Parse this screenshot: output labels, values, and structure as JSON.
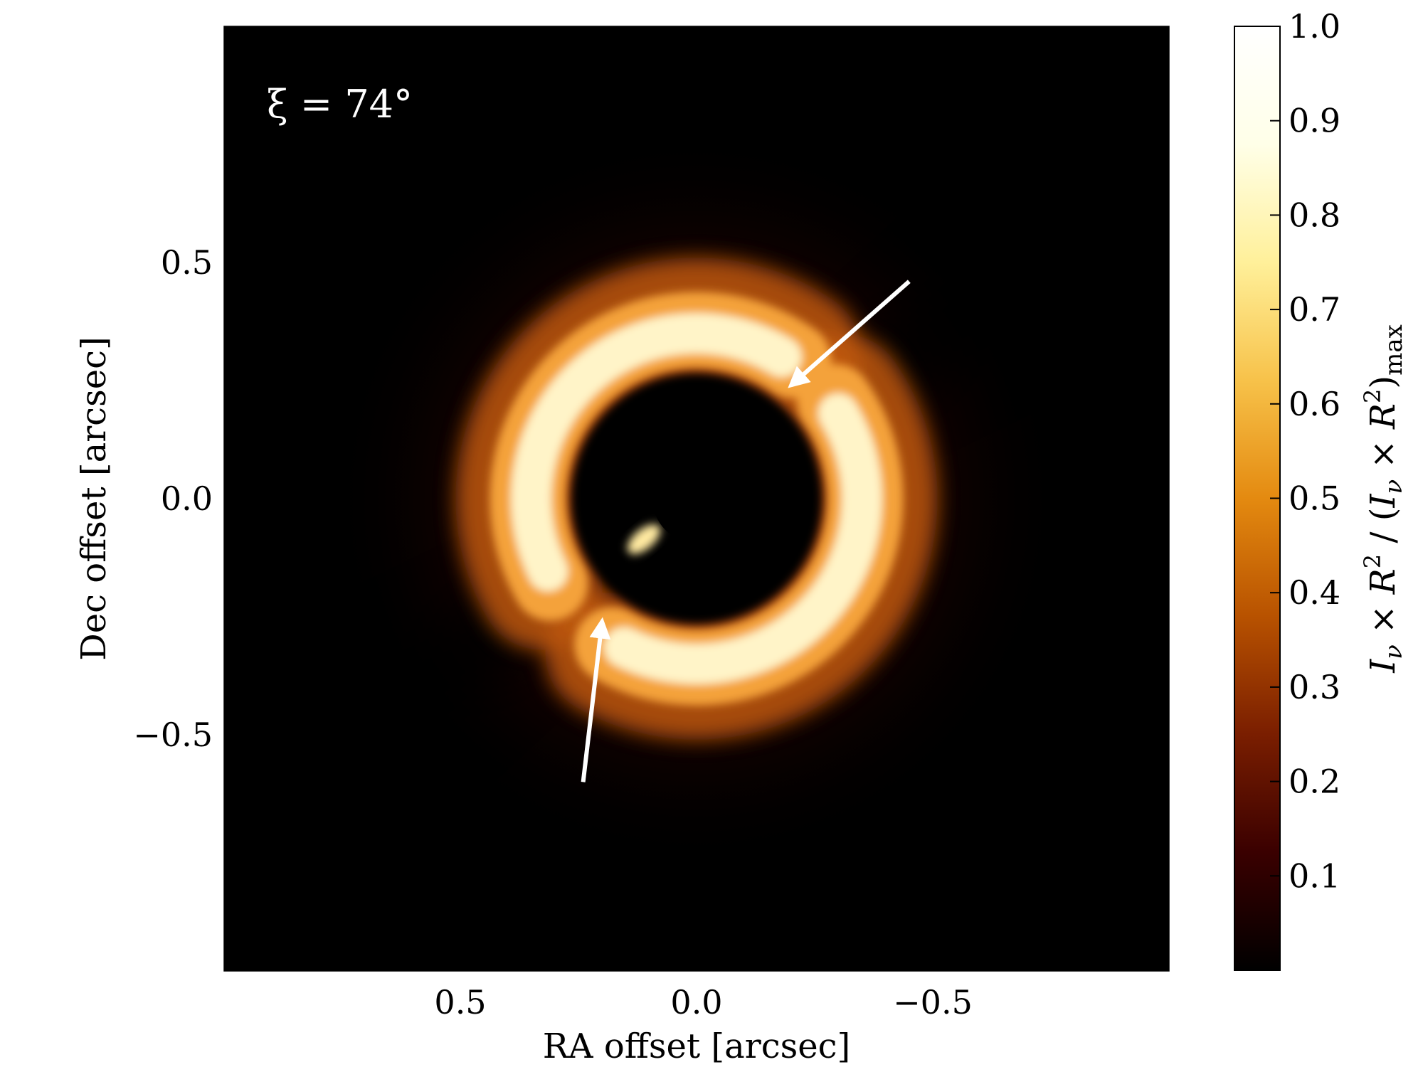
{
  "chart_data": {
    "type": "heatmap",
    "xlabel": "RA offset [arcsec]",
    "ylabel": "Dec offset [arcsec]",
    "annotation": "ξ = 74°",
    "x_range": [
      1.0,
      -1.0
    ],
    "y_range": [
      -1.0,
      1.0
    ],
    "x_ticks": [
      {
        "value": 0.5,
        "label": "0.5"
      },
      {
        "value": 0.0,
        "label": "0.0"
      },
      {
        "value": -0.5,
        "label": "−0.5"
      }
    ],
    "y_ticks": [
      {
        "value": 0.5,
        "label": "0.5"
      },
      {
        "value": 0.0,
        "label": "0.0"
      },
      {
        "value": -0.5,
        "label": "−0.5"
      }
    ],
    "colorbar": {
      "label": "I_ν × R² / (I_ν × R²)_max",
      "label_parts": {
        "i": "I",
        "nu": "ν",
        "times": " × ",
        "r": "R",
        "sq": "2",
        "slash": " / (",
        "close": ")",
        "max": "max"
      },
      "range": [
        0.0,
        1.0
      ],
      "ticks": [
        {
          "value": 0.1,
          "label": "0.1"
        },
        {
          "value": 0.2,
          "label": "0.2"
        },
        {
          "value": 0.3,
          "label": "0.3"
        },
        {
          "value": 0.4,
          "label": "0.4"
        },
        {
          "value": 0.5,
          "label": "0.5"
        },
        {
          "value": 0.6,
          "label": "0.6"
        },
        {
          "value": 0.7,
          "label": "0.7"
        },
        {
          "value": 0.8,
          "label": "0.8"
        },
        {
          "value": 0.9,
          "label": "0.9"
        },
        {
          "value": 1.0,
          "label": "1.0"
        }
      ],
      "colormap": "afmhot",
      "stops": [
        "#000000",
        "#3a0000",
        "#7a1e00",
        "#b85200",
        "#e48a10",
        "#f7c24a",
        "#fff09a",
        "#ffffe8",
        "#ffffff"
      ]
    },
    "arrows": [
      {
        "from": [
          -0.45,
          0.46
        ],
        "to": [
          -0.2,
          0.24
        ]
      },
      {
        "from": [
          0.24,
          -0.6
        ],
        "to": [
          0.2,
          -0.26
        ]
      }
    ],
    "image_features": {
      "ring_inner_radius_arcsec": 0.3,
      "ring_outer_radius_arcsec": 0.4,
      "central_occulter_radius_arcsec": 0.1,
      "shadow_position_angle_deg": 45
    }
  }
}
